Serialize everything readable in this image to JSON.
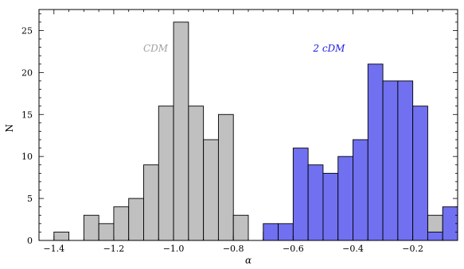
{
  "chart_data": {
    "type": "bar",
    "xlabel": "α",
    "ylabel": "N",
    "xlim": [
      -1.45,
      -0.05
    ],
    "ylim": [
      0,
      27.5
    ],
    "x_ticks": [
      -1.4,
      -1.2,
      -1.0,
      -0.8,
      -0.6,
      -0.4,
      -0.2
    ],
    "x_tick_labels": [
      "-1.4",
      "-1.2",
      "-1.0",
      "-0.8",
      "-0.6",
      "-0.4",
      "-0.2"
    ],
    "y_ticks": [
      0,
      5,
      10,
      15,
      20,
      25
    ],
    "y_tick_labels": [
      "0",
      "5",
      "10",
      "15",
      "20",
      "25"
    ],
    "bin_width": 0.05,
    "grid": false,
    "series": [
      {
        "name": "CDM",
        "color": "#c0c0c0",
        "bins": [
          {
            "x0": -1.4,
            "count": 1
          },
          {
            "x0": -1.35,
            "count": 0
          },
          {
            "x0": -1.3,
            "count": 3
          },
          {
            "x0": -1.25,
            "count": 2
          },
          {
            "x0": -1.2,
            "count": 4
          },
          {
            "x0": -1.15,
            "count": 5
          },
          {
            "x0": -1.1,
            "count": 9
          },
          {
            "x0": -1.05,
            "count": 16
          },
          {
            "x0": -1.0,
            "count": 26
          },
          {
            "x0": -0.95,
            "count": 16
          },
          {
            "x0": -0.9,
            "count": 12
          },
          {
            "x0": -0.85,
            "count": 15
          },
          {
            "x0": -0.8,
            "count": 3
          },
          {
            "x0": -0.75,
            "count": 0
          },
          {
            "x0": -0.7,
            "count": 1
          },
          {
            "x0": -0.65,
            "count": 1
          },
          {
            "x0": -0.6,
            "count": 0
          },
          {
            "x0": -0.55,
            "count": 0
          },
          {
            "x0": -0.5,
            "count": 0
          },
          {
            "x0": -0.45,
            "count": 0
          },
          {
            "x0": -0.4,
            "count": 1
          },
          {
            "x0": -0.35,
            "count": 0
          },
          {
            "x0": -0.3,
            "count": 1
          },
          {
            "x0": -0.25,
            "count": 0
          },
          {
            "x0": -0.2,
            "count": 1
          },
          {
            "x0": -0.15,
            "count": 3
          }
        ]
      },
      {
        "name": "2 cDM",
        "color": "#7070f0",
        "bins": [
          {
            "x0": -0.7,
            "count": 2
          },
          {
            "x0": -0.65,
            "count": 2
          },
          {
            "x0": -0.6,
            "count": 11
          },
          {
            "x0": -0.55,
            "count": 9
          },
          {
            "x0": -0.5,
            "count": 8
          },
          {
            "x0": -0.45,
            "count": 10
          },
          {
            "x0": -0.4,
            "count": 12
          },
          {
            "x0": -0.35,
            "count": 21
          },
          {
            "x0": -0.3,
            "count": 19
          },
          {
            "x0": -0.25,
            "count": 19
          },
          {
            "x0": -0.2,
            "count": 16
          },
          {
            "x0": -0.15,
            "count": 1
          },
          {
            "x0": -0.1,
            "count": 4
          }
        ]
      }
    ],
    "annotations": [
      {
        "text": "CDM",
        "x": -1.06,
        "y": 22.5,
        "color": "#a0a0a0"
      },
      {
        "text": "2 cDM",
        "x": -0.48,
        "y": 22.5,
        "color": "#2020e0"
      }
    ]
  }
}
